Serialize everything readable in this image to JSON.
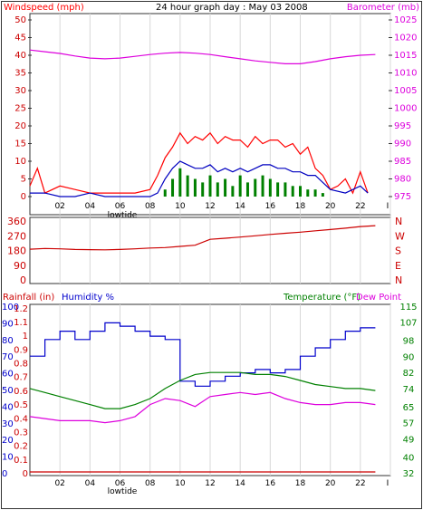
{
  "colors": {
    "windspeed": "#ff0000",
    "gust_avg": "#0000c0",
    "wind_fill": "#008000",
    "barometer": "#dd00dd",
    "direction": "#cc0000",
    "humidity": "#0000cc",
    "temperature": "#008000",
    "dewpoint": "#dd00dd",
    "rainfall": "#cc0000",
    "grid": "#d8d8d8"
  },
  "chart_data": [
    {
      "type": "line",
      "title": "24 hour graph day : May 03 2008",
      "y_left_label": "Windspeed (mph)",
      "y_right_label": "Barometer (mb)",
      "y_left_ticks": [
        "0",
        "5",
        "10",
        "15",
        "20",
        "25",
        "30",
        "35",
        "40",
        "45",
        "50"
      ],
      "y_right_ticks": [
        "975",
        "980",
        "985",
        "990",
        "995",
        "1000",
        "1005",
        "1010",
        "1015",
        "1020",
        "1025"
      ],
      "x_ticks": [
        "02",
        "04",
        "06",
        "08",
        "10",
        "12",
        "14",
        "16",
        "18",
        "20",
        "22",
        "I"
      ],
      "x_annotation": "lowtide",
      "ylim_left": [
        0,
        50
      ],
      "ylim_right": [
        975,
        1025
      ],
      "series": [
        {
          "name": "Windspeed (mph)",
          "axis": "left",
          "x": [
            0,
            0.5,
            1,
            2,
            3,
            4,
            5,
            6,
            7,
            8,
            8.5,
            9,
            9.5,
            10,
            10.5,
            11,
            11.5,
            12,
            12.5,
            13,
            13.5,
            14,
            14.5,
            15,
            15.5,
            16,
            16.5,
            17,
            17.5,
            18,
            18.5,
            19,
            19.5,
            20,
            20.5,
            21,
            21.5,
            22,
            22.5
          ],
          "values": [
            3,
            8,
            1,
            3,
            2,
            1,
            1,
            1,
            1,
            2,
            6,
            11,
            14,
            18,
            15,
            17,
            16,
            18,
            15,
            17,
            16,
            16,
            14,
            17,
            15,
            16,
            16,
            14,
            15,
            12,
            14,
            8,
            6,
            2,
            3,
            5,
            1,
            7,
            1
          ]
        },
        {
          "name": "",
          "axis": "left",
          "x": [
            0,
            1,
            2,
            3,
            4,
            5,
            6,
            7,
            8,
            8.5,
            9,
            9.5,
            10,
            10.5,
            11,
            11.5,
            12,
            12.5,
            13,
            13.5,
            14,
            14.5,
            15,
            15.5,
            16,
            16.5,
            17,
            17.5,
            18,
            18.5,
            19,
            19.5,
            20,
            21,
            22,
            22.5
          ],
          "values": [
            1,
            1,
            0,
            0,
            1,
            0,
            0,
            0,
            0,
            1,
            5,
            8,
            10,
            9,
            8,
            8,
            9,
            7,
            8,
            7,
            8,
            7,
            8,
            9,
            9,
            8,
            8,
            7,
            7,
            6,
            6,
            4,
            2,
            1,
            3,
            1
          ]
        },
        {
          "name": "",
          "axis": "left",
          "x": [
            9,
            9.5,
            10,
            10.5,
            11,
            11.5,
            12,
            12.5,
            13,
            13.5,
            14,
            14.5,
            15,
            15.5,
            16,
            16.5,
            17,
            17.5,
            18,
            18.5,
            19,
            19.5,
            20
          ],
          "values": [
            2,
            5,
            8,
            6,
            5,
            4,
            6,
            4,
            5,
            3,
            6,
            4,
            5,
            6,
            5,
            4,
            4,
            3,
            3,
            2,
            2,
            1,
            0
          ]
        },
        {
          "name": "Barometer (mb)",
          "axis": "right",
          "x": [
            0,
            1,
            2,
            3,
            4,
            5,
            6,
            7,
            8,
            9,
            10,
            11,
            12,
            13,
            14,
            15,
            16,
            17,
            18,
            19,
            20,
            21,
            22,
            23
          ],
          "values": [
            1016.5,
            1016,
            1015.5,
            1014.8,
            1014.2,
            1014,
            1014.2,
            1014.7,
            1015.2,
            1015.6,
            1015.8,
            1015.6,
            1015.2,
            1014.6,
            1014,
            1013.4,
            1013,
            1012.6,
            1012.6,
            1013.2,
            1014,
            1014.6,
            1015,
            1015.2
          ]
        }
      ]
    },
    {
      "type": "line",
      "y_left_ticks": [
        "360",
        "270",
        "180",
        "90",
        "0"
      ],
      "y_right_ticks": [
        "N",
        "W",
        "S",
        "E",
        "N"
      ],
      "ylim": [
        0,
        360
      ],
      "series": [
        {
          "name": "",
          "x": [
            0,
            1,
            2,
            3,
            4,
            5,
            6,
            7,
            8,
            9,
            10,
            11,
            12,
            13,
            14,
            15,
            16,
            17,
            18,
            19,
            20,
            21,
            22,
            23
          ],
          "values": [
            188,
            192,
            190,
            186,
            185,
            184,
            186,
            190,
            195,
            198,
            205,
            212,
            248,
            255,
            262,
            270,
            278,
            285,
            292,
            300,
            308,
            316,
            326,
            332
          ]
        }
      ]
    },
    {
      "type": "line",
      "y_left_label_1": "Rainfall (in)",
      "y_left_label_2": "Humidity %",
      "y_right_label_1": "Temperature (°F)",
      "y_right_label_2": "Dew Point",
      "y_rain_ticks": [
        "0",
        "0.1",
        "0.2",
        "0.3",
        "0.4",
        "0.5",
        "0.6",
        "0.7",
        "0.8",
        "0.9",
        "1",
        "1.1",
        "1.2"
      ],
      "y_humidity_ticks": [
        "0",
        "10",
        "20",
        "30",
        "40",
        "50",
        "60",
        "70",
        "80",
        "90",
        "100"
      ],
      "y_right_ticks": [
        "32",
        "40",
        "49",
        "57",
        "65",
        "74",
        "82",
        "90",
        "98",
        "107",
        "115"
      ],
      "x_ticks": [
        "02",
        "04",
        "06",
        "08",
        "10",
        "12",
        "14",
        "16",
        "18",
        "20",
        "22",
        "I"
      ],
      "x_annotation": "lowtide",
      "ylim_humidity": [
        0,
        100
      ],
      "ylim_temperature": [
        32,
        115
      ],
      "series": [
        {
          "name": "Humidity %",
          "axis": "left",
          "x": [
            0,
            1,
            1,
            2,
            2,
            3,
            3,
            4,
            4,
            5,
            5,
            6,
            6,
            7,
            7,
            8,
            8,
            9,
            9,
            10,
            10,
            11,
            11,
            12,
            12,
            13,
            13,
            14,
            14,
            15,
            15,
            16,
            16,
            17,
            17,
            18,
            18,
            19,
            19,
            20,
            20,
            21,
            21,
            22,
            22,
            23
          ],
          "values": [
            70,
            70,
            80,
            80,
            85,
            85,
            80,
            80,
            85,
            85,
            90,
            90,
            88,
            88,
            85,
            85,
            82,
            82,
            80,
            80,
            55,
            55,
            52,
            52,
            55,
            55,
            58,
            58,
            60,
            60,
            62,
            62,
            60,
            60,
            62,
            62,
            70,
            70,
            75,
            75,
            80,
            80,
            85,
            85,
            87,
            87
          ]
        },
        {
          "name": "Temperature (°F)",
          "axis": "right",
          "x": [
            0,
            1,
            2,
            3,
            4,
            5,
            6,
            7,
            8,
            9,
            10,
            11,
            12,
            13,
            14,
            15,
            16,
            17,
            18,
            19,
            20,
            21,
            22,
            23
          ],
          "values": [
            74,
            72,
            70,
            68,
            66,
            64,
            64,
            66,
            69,
            74,
            78,
            81,
            82,
            82,
            82,
            81,
            81,
            80,
            78,
            76,
            75,
            74,
            74,
            73
          ]
        },
        {
          "name": "Dew Point",
          "axis": "right",
          "x": [
            0,
            1,
            2,
            3,
            4,
            5,
            6,
            7,
            8,
            9,
            10,
            11,
            12,
            13,
            14,
            15,
            16,
            17,
            18,
            19,
            20,
            21,
            22,
            23
          ],
          "values": [
            60,
            59,
            58,
            58,
            58,
            57,
            58,
            60,
            66,
            69,
            68,
            65,
            70,
            71,
            72,
            71,
            72,
            69,
            67,
            66,
            66,
            67,
            67,
            66
          ]
        },
        {
          "name": "Rainfall (in)",
          "axis": "left",
          "x": [
            0,
            23
          ],
          "values": [
            0,
            0
          ]
        }
      ]
    }
  ]
}
